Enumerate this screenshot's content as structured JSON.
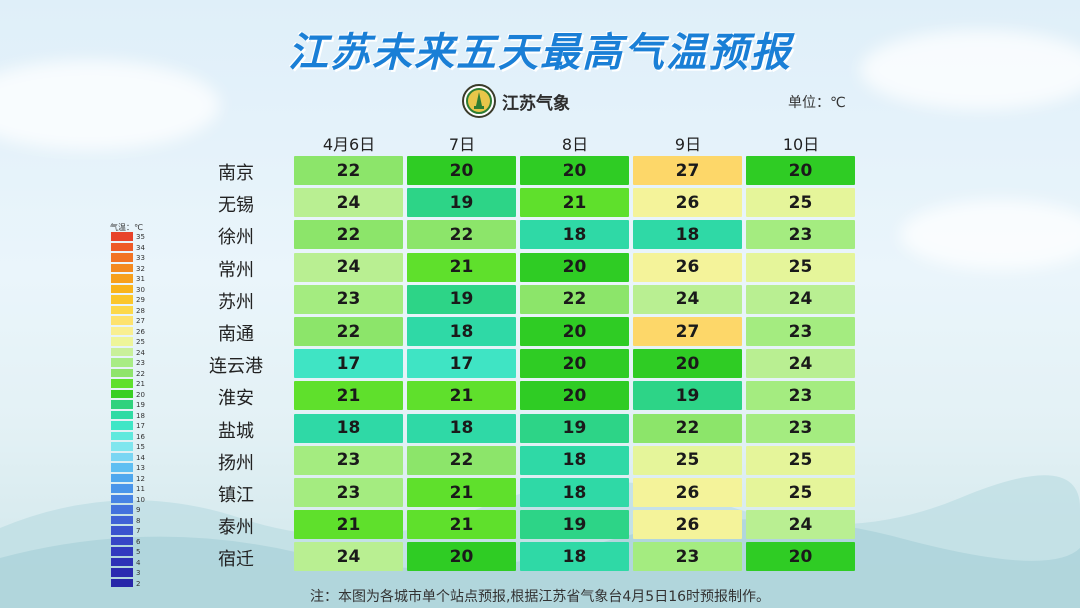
{
  "title": "江苏未来五天最高气温预报",
  "logo_text": "江苏气象",
  "unit": "单位：℃",
  "note": "注：本图为各城市单个站点预报,根据江苏省气象台4月5日16时预报制作。",
  "legend": {
    "title": "气温：℃",
    "values": [
      35,
      34,
      33,
      32,
      31,
      30,
      29,
      28,
      27,
      26,
      25,
      24,
      23,
      22,
      21,
      20,
      19,
      18,
      17,
      16,
      15,
      14,
      13,
      12,
      11,
      10,
      9,
      8,
      7,
      6,
      5,
      4,
      3,
      2
    ]
  },
  "colors": {
    "title": "#1a7fd6"
  },
  "chart_data": {
    "type": "table",
    "columns": [
      "4月6日",
      "7日",
      "8日",
      "9日",
      "10日"
    ],
    "rows": [
      {
        "city": "南京",
        "values": [
          22,
          20,
          20,
          27,
          20
        ]
      },
      {
        "city": "无锡",
        "values": [
          24,
          19,
          21,
          26,
          25
        ]
      },
      {
        "city": "徐州",
        "values": [
          22,
          22,
          18,
          18,
          23
        ]
      },
      {
        "city": "常州",
        "values": [
          24,
          21,
          20,
          26,
          25
        ]
      },
      {
        "city": "苏州",
        "values": [
          23,
          19,
          22,
          24,
          24
        ]
      },
      {
        "city": "南通",
        "values": [
          22,
          18,
          20,
          27,
          23
        ]
      },
      {
        "city": "连云港",
        "values": [
          17,
          17,
          20,
          20,
          24
        ]
      },
      {
        "city": "淮安",
        "values": [
          21,
          21,
          20,
          19,
          23
        ]
      },
      {
        "city": "盐城",
        "values": [
          18,
          18,
          19,
          22,
          23
        ]
      },
      {
        "city": "扬州",
        "values": [
          23,
          22,
          18,
          25,
          25
        ]
      },
      {
        "city": "镇江",
        "values": [
          23,
          21,
          18,
          26,
          25
        ]
      },
      {
        "city": "泰州",
        "values": [
          21,
          21,
          19,
          26,
          24
        ]
      },
      {
        "city": "宿迁",
        "values": [
          24,
          20,
          18,
          23,
          20
        ]
      }
    ]
  }
}
